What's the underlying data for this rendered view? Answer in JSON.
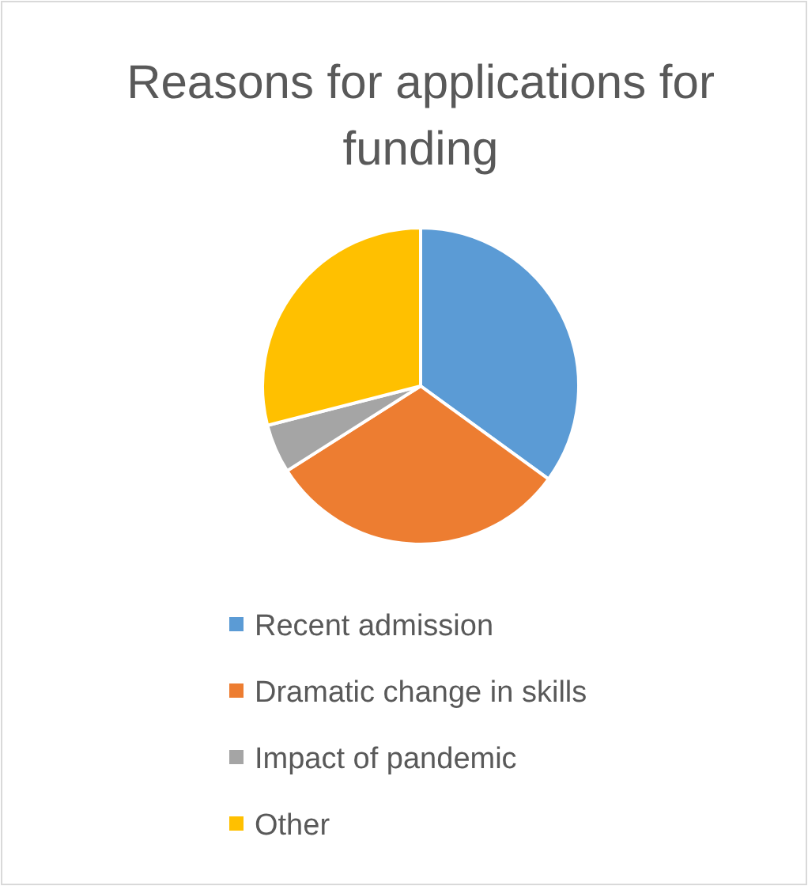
{
  "chart_data": {
    "type": "pie",
    "title": "Reasons for applications for funding",
    "categories": [
      "Recent admission",
      "Dramatic change in skills",
      "Impact of pandemic",
      "Other"
    ],
    "values": [
      35,
      31,
      5,
      29
    ],
    "colors": [
      "#5b9bd5",
      "#ed7d31",
      "#a5a5a5",
      "#ffc000"
    ],
    "legend": "bottom"
  }
}
